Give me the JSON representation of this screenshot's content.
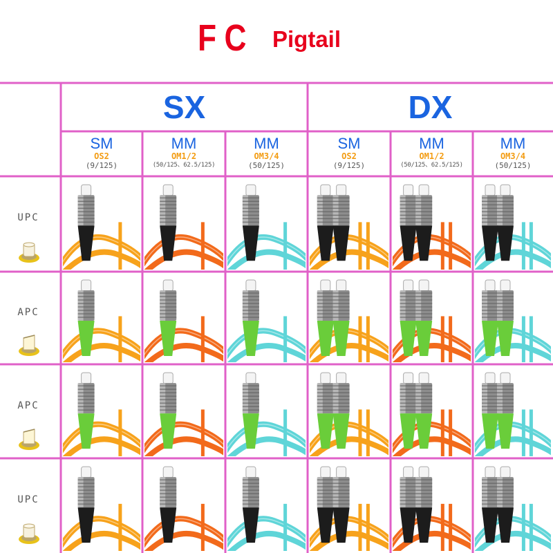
{
  "title": {
    "fc": "FC",
    "pigtail": "Pigtail"
  },
  "groups": [
    {
      "label": "SX"
    },
    {
      "label": "DX"
    }
  ],
  "columns": [
    {
      "mode": "SM",
      "os": "OS2",
      "size": "(9/125)"
    },
    {
      "mode": "MM",
      "os": "OM1/2",
      "size": "(50/125、62.5/125)"
    },
    {
      "mode": "MM",
      "os": "OM3/4",
      "size": "(50/125)"
    },
    {
      "mode": "SM",
      "os": "OS2",
      "size": "(9/125)"
    },
    {
      "mode": "MM",
      "os": "OM1/2",
      "size": "(50/125、62.5/125)"
    },
    {
      "mode": "MM",
      "os": "OM3/4",
      "size": "(50/125)"
    }
  ],
  "rows": [
    {
      "label": "UPC",
      "boot": "black"
    },
    {
      "label": "APC",
      "boot": "green"
    },
    {
      "label": "APC",
      "boot": "green"
    },
    {
      "label": "UPC",
      "boot": "black"
    }
  ],
  "colors": {
    "title_red": "#e8001c",
    "header_blue": "#1a64e0",
    "os_orange": "#f39c12",
    "grid_pink": "#e060c8",
    "cable_os2": "#f7a21b",
    "cable_om12": "#f26a1b",
    "cable_om34": "#5fd5d8",
    "boot_black": "#1c1c1c",
    "boot_green": "#6acd3a",
    "ferrule_upc": "#f6f1df",
    "ferrule_apc": "#fdf6d6"
  }
}
